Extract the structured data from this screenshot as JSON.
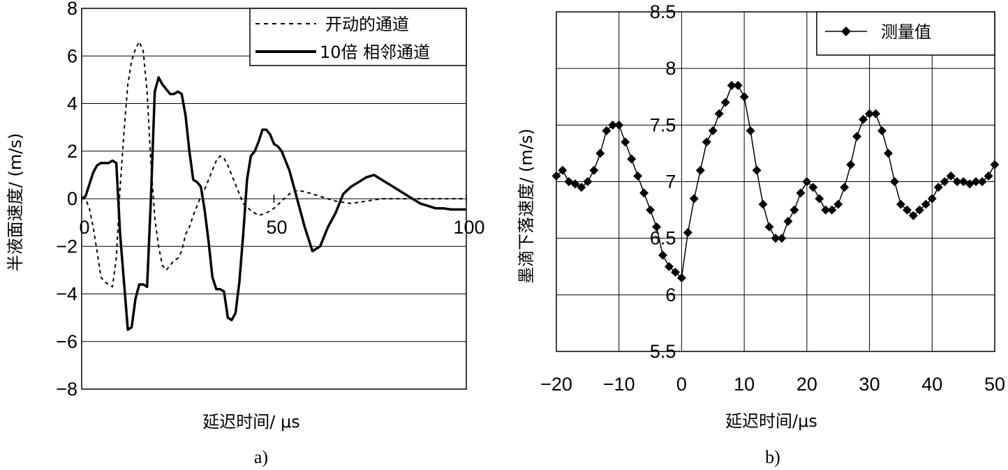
{
  "chart_data": [
    {
      "type": "line",
      "caption": "a)",
      "xlabel": "延迟时间/ μs",
      "ylabel": "半液面速度/ (m/s)",
      "xlim": [
        0,
        100
      ],
      "ylim": [
        -8,
        8
      ],
      "xticks": [
        0,
        50,
        100
      ],
      "yticks": [
        -8,
        -6,
        -4,
        -2,
        0,
        2,
        4,
        6,
        8
      ],
      "ytick_labels": [
        "−8",
        "−6",
        "−4",
        "−2",
        "0",
        "2",
        "4",
        "6",
        "8"
      ],
      "grid": "horizontal",
      "legend_position": "top-right",
      "series": [
        {
          "name": "开动的通道",
          "style": "dashed",
          "x": [
            0,
            1,
            2,
            3,
            4,
            5,
            6,
            7,
            8,
            9,
            10,
            11,
            12,
            13,
            14,
            15,
            16,
            17,
            18,
            19,
            20,
            21,
            22,
            23,
            24,
            25,
            26,
            27,
            28,
            29,
            30,
            31,
            32,
            33,
            34,
            35,
            36,
            37,
            38,
            39,
            40,
            42,
            44,
            46,
            48,
            50,
            52,
            54,
            56,
            58,
            60,
            62,
            64,
            66,
            68,
            70,
            72,
            74,
            76,
            78,
            80,
            82,
            84,
            86,
            88,
            90,
            92,
            94,
            96,
            98,
            100
          ],
          "y": [
            0,
            0,
            -0.4,
            -1.2,
            -2.2,
            -3.3,
            -3.5,
            -3.6,
            -3.7,
            -2.5,
            0.5,
            2.8,
            4.8,
            5.8,
            6.3,
            6.6,
            6.2,
            4.5,
            1.5,
            -0.8,
            -2,
            -2.8,
            -3,
            -2.8,
            -2.6,
            -2.5,
            -2.2,
            -1.5,
            -1.2,
            -0.7,
            -0.3,
            0.1,
            0.4,
            0.8,
            1.2,
            1.6,
            1.8,
            1.7,
            1.4,
            1.0,
            0.6,
            -0.2,
            -0.5,
            -0.7,
            -0.6,
            -0.4,
            -0.1,
            0.2,
            0.35,
            0.3,
            0.2,
            0.1,
            0.0,
            -0.1,
            -0.15,
            -0.2,
            -0.15,
            -0.1,
            -0.05,
            0,
            0.0,
            0.0,
            0.0,
            0.0,
            0.0,
            0.0,
            0.0,
            0.0,
            0.0,
            0.0,
            0.0
          ]
        },
        {
          "name": "10倍 相邻通道",
          "style": "solid",
          "x": [
            0,
            1,
            2,
            3,
            4,
            5,
            6,
            7,
            8,
            9,
            10,
            11,
            12,
            13,
            14,
            15,
            16,
            17,
            18,
            19,
            20,
            21,
            22,
            23,
            24,
            25,
            26,
            27,
            28,
            29,
            30,
            31,
            32,
            33,
            34,
            35,
            36,
            37,
            38,
            39,
            40,
            41,
            42,
            43,
            44,
            45,
            46,
            47,
            48,
            49,
            50,
            51,
            52,
            54,
            56,
            58,
            60,
            62,
            64,
            66,
            68,
            70,
            72,
            74,
            76,
            78,
            80,
            82,
            84,
            86,
            88,
            90,
            92,
            94,
            96,
            98,
            100
          ],
          "y": [
            0,
            0.1,
            0.6,
            1.1,
            1.4,
            1.5,
            1.5,
            1.5,
            1.6,
            1.5,
            -1.5,
            -3.5,
            -5.5,
            -5.4,
            -4.2,
            -3.6,
            -3.6,
            -3.7,
            0,
            4.5,
            5.1,
            4.8,
            4.6,
            4.4,
            4.4,
            4.5,
            4.4,
            3.5,
            2,
            0.8,
            0.7,
            0.5,
            -0.5,
            -1.8,
            -3.3,
            -3.8,
            -3.8,
            -3.9,
            -5,
            -5.1,
            -4.8,
            -3.5,
            -1.5,
            0.8,
            1.8,
            2.0,
            2.4,
            2.9,
            2.9,
            2.7,
            2.3,
            2.2,
            2.0,
            1.2,
            0.0,
            -1.2,
            -2.2,
            -2.0,
            -1.2,
            -0.6,
            0.2,
            0.5,
            0.7,
            0.9,
            1.0,
            0.8,
            0.6,
            0.4,
            0.2,
            0.0,
            -0.2,
            -0.3,
            -0.4,
            -0.4,
            -0.45,
            -0.45,
            -0.45
          ]
        }
      ]
    },
    {
      "type": "line",
      "caption": "b)",
      "xlabel": "延迟时间/μs",
      "ylabel": "墨滴下落速度/ (m/s)",
      "xlim": [
        -20,
        50
      ],
      "ylim": [
        5.5,
        8.5
      ],
      "xticks": [
        -20,
        -10,
        0,
        10,
        20,
        30,
        40,
        50
      ],
      "xtick_labels": [
        "−20",
        "−10",
        "0",
        "10",
        "20",
        "30",
        "40",
        "50"
      ],
      "yticks": [
        5.5,
        6,
        6.5,
        7,
        7.5,
        8,
        8.5
      ],
      "ytick_labels": [
        "5.5",
        "6",
        "6.5",
        "7",
        "7.5",
        "8",
        "8.5"
      ],
      "grid": "both",
      "legend_position": "top-right",
      "series": [
        {
          "name": "测量值",
          "marker": "diamond",
          "x": [
            -20,
            -19,
            -18,
            -17,
            -16,
            -15,
            -14,
            -13,
            -12,
            -11,
            -10,
            -9,
            -8,
            -7,
            -6,
            -5,
            -4,
            -3,
            -2,
            -1,
            0,
            1,
            2,
            3,
            4,
            5,
            6,
            7,
            8,
            9,
            10,
            11,
            12,
            13,
            14,
            15,
            16,
            17,
            18,
            19,
            20,
            21,
            22,
            23,
            24,
            25,
            26,
            27,
            28,
            29,
            30,
            31,
            32,
            33,
            34,
            35,
            36,
            37,
            38,
            39,
            40,
            41,
            42,
            43,
            44,
            45,
            46,
            47,
            48,
            49,
            50
          ],
          "y": [
            7.05,
            7.1,
            7.0,
            6.98,
            6.95,
            7.0,
            7.1,
            7.25,
            7.45,
            7.5,
            7.5,
            7.35,
            7.2,
            7.05,
            6.9,
            6.75,
            6.6,
            6.35,
            6.25,
            6.2,
            6.15,
            6.55,
            6.85,
            7.1,
            7.35,
            7.45,
            7.6,
            7.7,
            7.85,
            7.85,
            7.75,
            7.45,
            7.1,
            6.8,
            6.6,
            6.5,
            6.5,
            6.65,
            6.75,
            6.9,
            7.0,
            6.95,
            6.85,
            6.75,
            6.75,
            6.8,
            6.95,
            7.15,
            7.4,
            7.55,
            7.6,
            7.6,
            7.45,
            7.25,
            7.0,
            6.8,
            6.75,
            6.7,
            6.75,
            6.8,
            6.85,
            6.95,
            7.0,
            7.05,
            7.0,
            7.0,
            6.98,
            7.0,
            7.0,
            7.05,
            7.15
          ]
        }
      ]
    }
  ]
}
